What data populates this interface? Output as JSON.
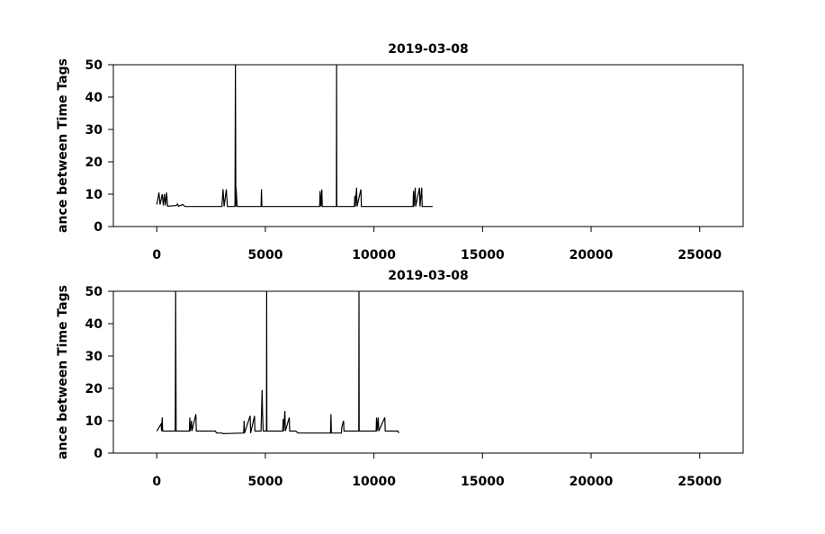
{
  "chart_data": [
    {
      "type": "line",
      "title": "2019-03-08",
      "y_label": "ance between Time Tags",
      "xlim": [
        -2000,
        27000
      ],
      "xticks": [
        0,
        5000,
        10000,
        15000,
        20000,
        25000
      ],
      "ylim": [
        0,
        50
      ],
      "yticks": [
        0,
        10,
        20,
        30,
        40,
        50
      ],
      "series": [
        {
          "color": "#000000",
          "x": [
            0,
            100,
            150,
            250,
            300,
            350,
            400,
            450,
            500,
            900,
            950,
            1000,
            1200,
            1300,
            3000,
            3050,
            3100,
            3200,
            3250,
            3600,
            3620,
            3640,
            3650,
            3700,
            4800,
            4820,
            4840,
            7500,
            7520,
            7560,
            7600,
            7620,
            8270,
            8280,
            8290,
            9100,
            9120,
            9140,
            9200,
            9220,
            9400,
            9420,
            11800,
            11820,
            11840,
            11900,
            11920,
            12100,
            12120,
            12200,
            12220,
            12700
          ],
          "values": [
            6.8,
            10.5,
            6.8,
            10,
            6.5,
            10,
            6.5,
            10.5,
            6.3,
            6.5,
            7,
            6.3,
            6.8,
            6.2,
            6.2,
            11.5,
            6.2,
            11.5,
            6.2,
            6.2,
            50,
            6.2,
            12,
            6.2,
            6.2,
            11.5,
            6.2,
            6.2,
            11,
            6.2,
            11.5,
            6.2,
            6.2,
            50,
            6.2,
            6.2,
            9.5,
            6.2,
            12,
            6.2,
            11.5,
            6.2,
            6.2,
            11,
            6.2,
            12,
            6.2,
            12,
            6.2,
            12,
            6.2,
            6.2
          ]
        }
      ]
    },
    {
      "type": "line",
      "title": "2019-03-08",
      "y_label": "ance between Time Tags",
      "xlim": [
        -2000,
        27000
      ],
      "xticks": [
        0,
        5000,
        10000,
        15000,
        20000,
        25000
      ],
      "ylim": [
        0,
        50
      ],
      "yticks": [
        0,
        10,
        20,
        30,
        40,
        50
      ],
      "series": [
        {
          "color": "#000000",
          "x": [
            0,
            200,
            220,
            250,
            270,
            850,
            870,
            890,
            1500,
            1520,
            1540,
            1600,
            1620,
            1800,
            1820,
            2700,
            2750,
            3000,
            3050,
            4000,
            4020,
            4040,
            4300,
            4320,
            4500,
            4520,
            4800,
            4850,
            4870,
            4900,
            5050,
            5060,
            5070,
            5800,
            5820,
            5840,
            5900,
            5920,
            6100,
            6120,
            6400,
            6500,
            8000,
            8020,
            8040,
            8500,
            8520,
            8600,
            8620,
            9300,
            9310,
            9320,
            10100,
            10120,
            10140,
            10200,
            10220,
            10500,
            10520,
            11100,
            11150
          ],
          "values": [
            6.8,
            9,
            6.8,
            11,
            6.8,
            6.8,
            50,
            6.8,
            6.8,
            11,
            6.8,
            10,
            6.8,
            12,
            6.8,
            6.8,
            6.2,
            6.2,
            6,
            6.2,
            10,
            6.2,
            11.5,
            6.2,
            11.5,
            6.8,
            6.8,
            19.5,
            12.5,
            6.8,
            6.8,
            50,
            6.8,
            6.8,
            10.5,
            6.8,
            13,
            6.8,
            11,
            6.8,
            6.8,
            6.2,
            6.2,
            12,
            6.2,
            6.2,
            8,
            10,
            6.8,
            6.8,
            50,
            6.8,
            6.8,
            11,
            6.8,
            11,
            6.8,
            11,
            6.8,
            6.8,
            6.2
          ]
        }
      ]
    }
  ]
}
